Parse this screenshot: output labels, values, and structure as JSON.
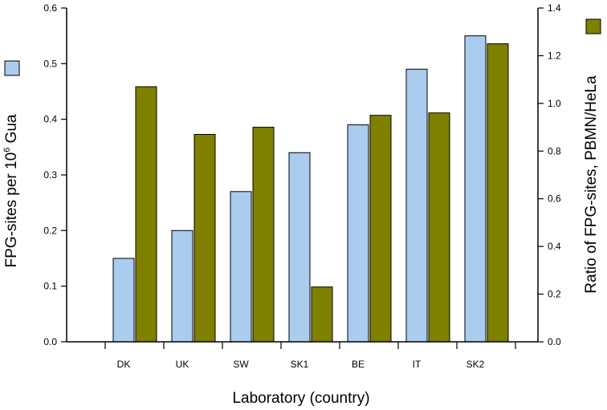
{
  "chart_data": {
    "type": "bar",
    "categories": [
      "DK",
      "UK",
      "SW",
      "SK1",
      "BE",
      "IT",
      "SK2"
    ],
    "series": [
      {
        "axis": "left",
        "color": "#aaccee",
        "values": [
          0.15,
          0.2,
          0.27,
          0.34,
          0.39,
          0.49,
          0.55
        ]
      },
      {
        "axis": "right",
        "color": "#808000",
        "values": [
          1.07,
          0.87,
          0.9,
          0.23,
          0.95,
          0.96,
          1.25
        ]
      }
    ],
    "xlabel": "Laboratory (country)",
    "ylabel": {
      "prefix": "FPG-sites per 10",
      "sup": "6",
      "suffix": " Gua"
    },
    "y2label": "Ratio of FPG-sites, PBMN/HeLa",
    "ylim": [
      0,
      0.6
    ],
    "y2lim": [
      0,
      1.4
    ],
    "yticks": [
      "0.0",
      "0.1",
      "0.2",
      "0.3",
      "0.4",
      "0.5",
      "0.6"
    ],
    "y2ticks": [
      "0.0",
      "0.2",
      "0.4",
      "0.6",
      "0.8",
      "1.0",
      "1.2",
      "1.4"
    ],
    "grid": false
  }
}
